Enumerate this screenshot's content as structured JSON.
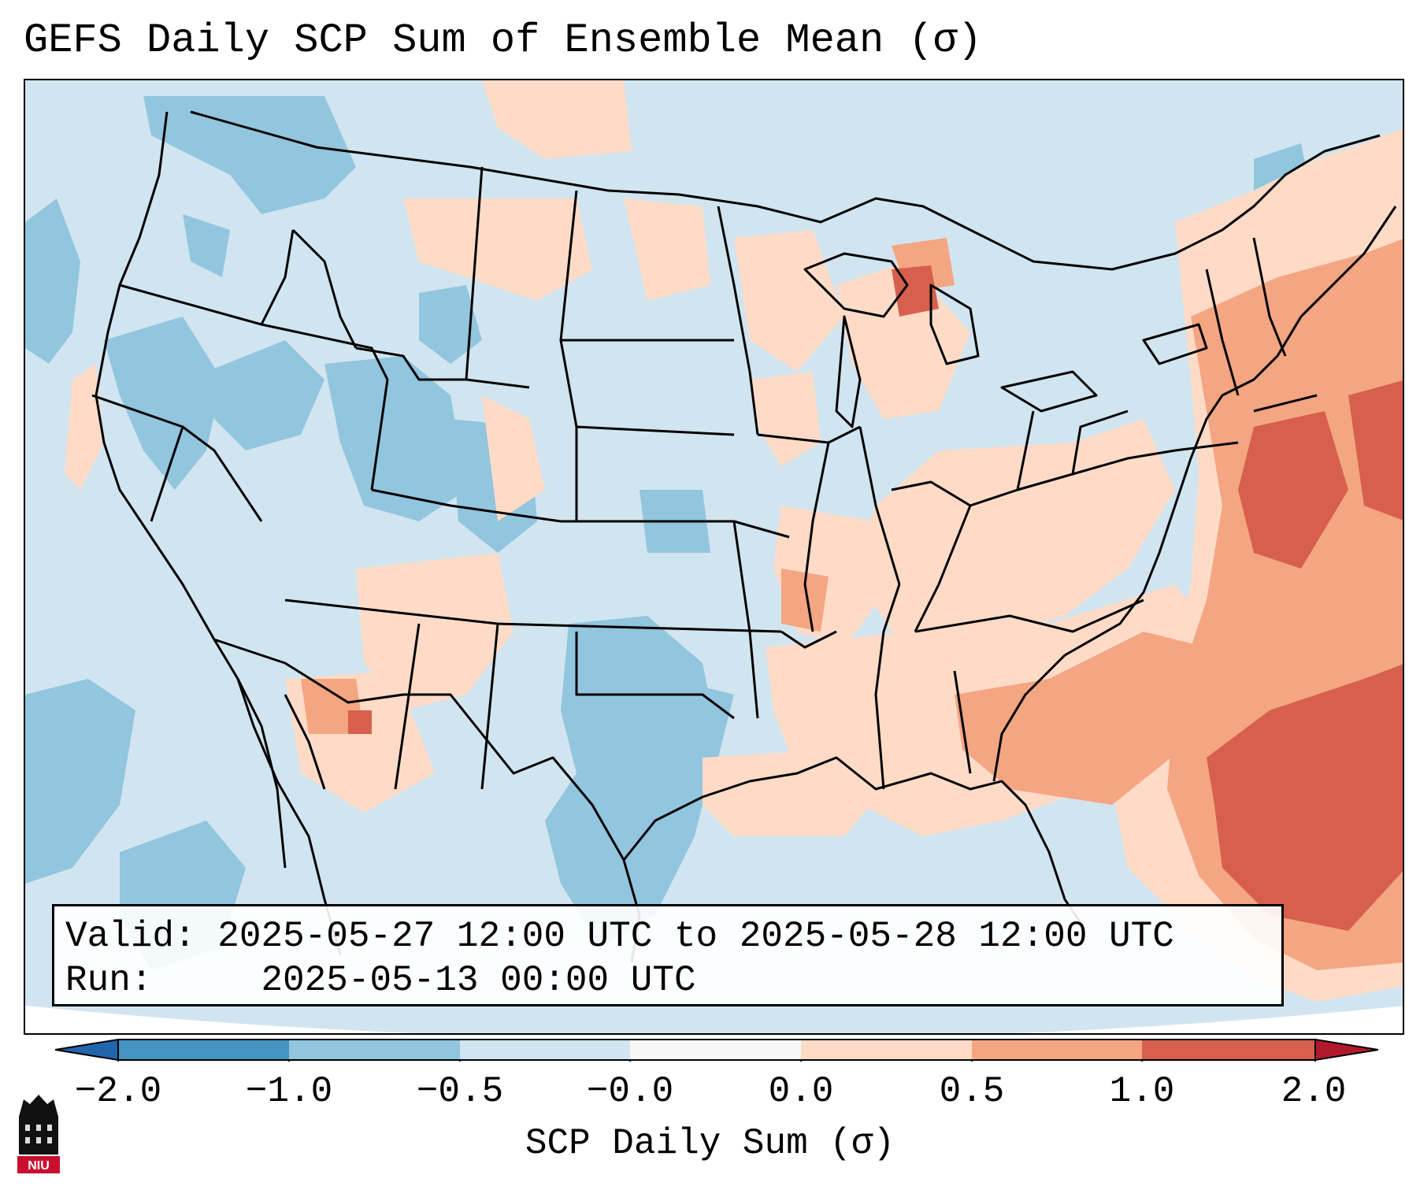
{
  "title": "GEFS Daily SCP Sum of Ensemble Mean (σ)",
  "info": {
    "valid_label": "Valid:",
    "valid_value": "2025-05-27 12:00 UTC to 2025-05-28 12:00 UTC",
    "run_label": "Run:",
    "run_value": "2025-05-13 00:00 UTC"
  },
  "colorbar": {
    "label": "SCP Daily Sum (σ)",
    "ticks": [
      "−2.0",
      "−1.0",
      "−0.5",
      "−0.0",
      "0.0",
      "0.5",
      "1.0",
      "2.0"
    ],
    "colors": {
      "under": "#2166ac",
      "b1": "#4393c3",
      "b2": "#92c5de",
      "b3": "#d1e5f0",
      "b4": "#f7f7f7",
      "b5": "#fddbc7",
      "b6": "#f4a582",
      "b7": "#d6604d",
      "over": "#b2182b"
    }
  },
  "logo": {
    "text": "NIU"
  }
}
